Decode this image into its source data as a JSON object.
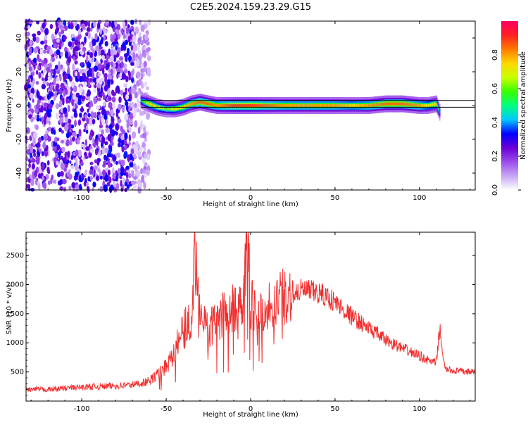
{
  "title": "C2E5.2024.159.23.29.G15",
  "chart_data": [
    {
      "type": "heatmap",
      "xlabel": "Height of straight line (km)",
      "ylabel": "Frequency (Hz)",
      "xlim": [
        -133,
        133
      ],
      "ylim": [
        -50,
        50
      ],
      "xticks": [
        -100,
        -50,
        0,
        50,
        100
      ],
      "yticks": [
        -40,
        -20,
        0,
        20,
        40
      ],
      "colorbar": {
        "label": "Normalized spectral amplitude",
        "range": [
          0.0,
          1.0
        ],
        "ticks": [
          0.0,
          0.2,
          0.4,
          0.6,
          0.8
        ],
        "colormap": [
          "#ffffff",
          "#c8a6f5",
          "#9b4dea",
          "#6a00d6",
          "#0000ff",
          "#00c8ff",
          "#00ff80",
          "#38ff00",
          "#c8ff00",
          "#ffd800",
          "#ff7a00",
          "#ff2020",
          "#ff0060"
        ]
      },
      "noise_region": {
        "x_range": [
          -133,
          -60
        ],
        "y_range": [
          -50,
          50
        ]
      },
      "signal_band": {
        "x": [
          -65,
          -60,
          -55,
          -50,
          -45,
          -40,
          -35,
          -30,
          -25,
          -20,
          -10,
          0,
          10,
          20,
          30,
          40,
          50,
          60,
          70,
          80,
          90,
          100,
          105,
          110,
          112
        ],
        "center_hz": [
          3,
          1,
          -1,
          -2,
          -2,
          -1,
          1,
          2,
          1,
          0,
          0,
          0,
          0,
          0,
          0,
          0,
          0,
          0,
          0,
          1,
          1,
          0,
          0,
          1,
          -4
        ],
        "peak_amplitude": [
          0.45,
          0.75,
          0.7,
          0.6,
          0.7,
          0.75,
          0.8,
          0.85,
          0.85,
          0.8,
          0.9,
          0.9,
          0.85,
          0.8,
          0.8,
          0.8,
          0.8,
          0.75,
          0.8,
          0.85,
          0.85,
          0.8,
          0.7,
          0.75,
          0.4
        ]
      },
      "reference_lines_hz": [
        3,
        -1
      ]
    },
    {
      "type": "line",
      "xlabel": "Height of straight line (km)",
      "ylabel": "SNR (10 * v/v)",
      "xlim": [
        -133,
        133
      ],
      "ylim": [
        0,
        2900
      ],
      "xticks": [
        -100,
        -50,
        0,
        50,
        100
      ],
      "yticks": [
        500,
        1000,
        1500,
        2000,
        2500
      ],
      "series": [
        {
          "color": "#f03030",
          "x": [
            -133,
            -120,
            -100,
            -80,
            -70,
            -60,
            -55,
            -50,
            -45,
            -40,
            -35,
            -33,
            -30,
            -25,
            -20,
            -15,
            -10,
            -5,
            -2,
            0,
            5,
            10,
            15,
            20,
            25,
            30,
            35,
            40,
            45,
            50,
            60,
            70,
            80,
            90,
            100,
            105,
            110,
            112,
            115,
            120,
            133
          ],
          "y": [
            200,
            200,
            240,
            260,
            280,
            340,
            460,
            600,
            900,
            1200,
            1500,
            2650,
            1700,
            1200,
            1400,
            1500,
            1600,
            1700,
            2850,
            1700,
            1500,
            1600,
            1750,
            1800,
            1850,
            1900,
            1880,
            1850,
            1800,
            1700,
            1450,
            1250,
            1050,
            900,
            780,
            700,
            650,
            1250,
            550,
            520,
            500
          ]
        }
      ]
    }
  ]
}
